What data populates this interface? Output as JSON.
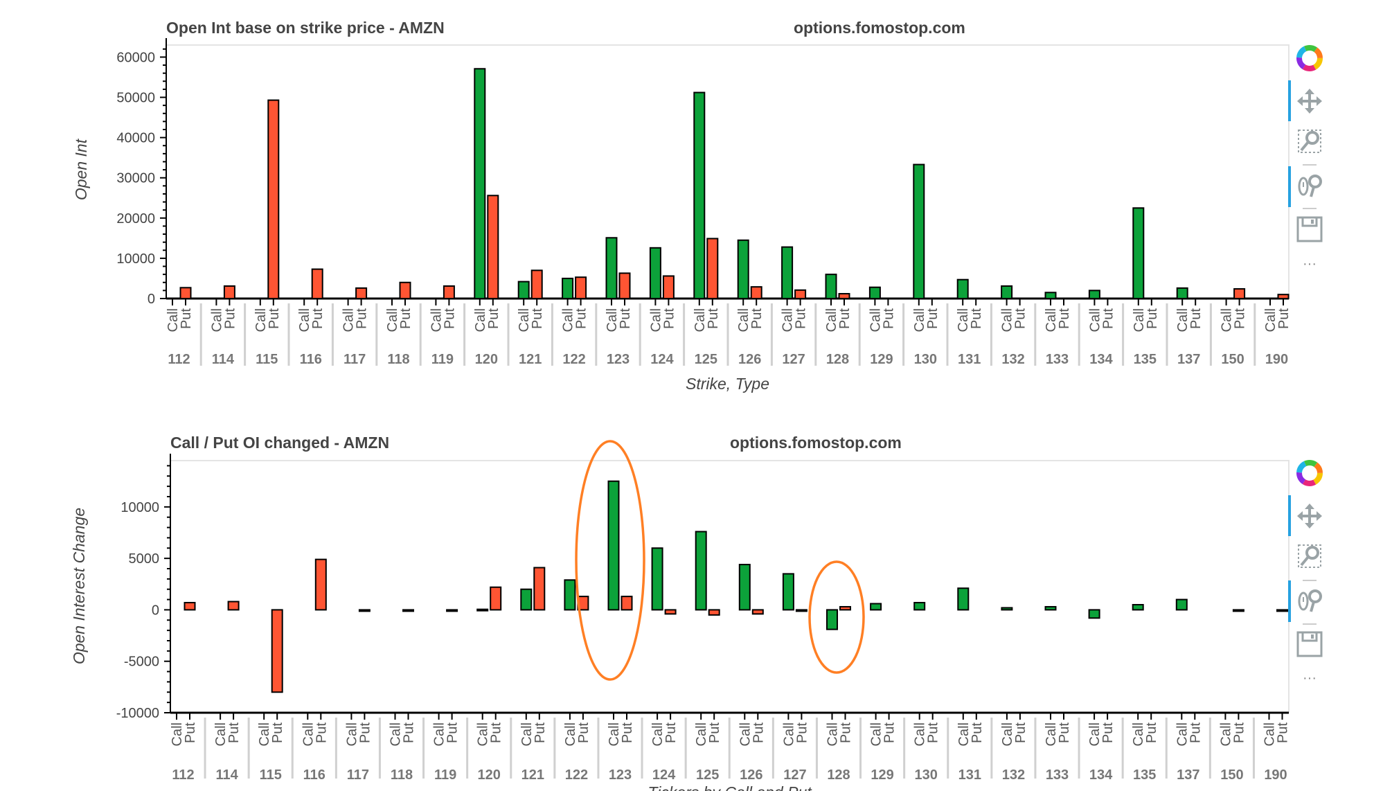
{
  "chart_data": [
    {
      "type": "bar",
      "title": "Open Int base on strike price - AMZN",
      "subtitle": "options.fomostop.com",
      "xlabel": "Strike, Type",
      "ylabel": "Open Int",
      "ylim": [
        0,
        63000
      ],
      "yticks": [
        0,
        10000,
        20000,
        30000,
        40000,
        50000,
        60000
      ],
      "ytick_labels": [
        "0",
        "10000",
        "20000",
        "30000",
        "40000",
        "50000",
        "60000"
      ],
      "grid": false,
      "categories": [
        "112",
        "114",
        "115",
        "116",
        "117",
        "118",
        "119",
        "120",
        "121",
        "122",
        "123",
        "124",
        "125",
        "126",
        "127",
        "128",
        "129",
        "130",
        "131",
        "132",
        "133",
        "134",
        "135",
        "137",
        "150",
        "190"
      ],
      "subcategories": [
        "Call",
        "Put"
      ],
      "series": [
        {
          "name": "Call",
          "color": "#0ca23a",
          "values": [
            0,
            0,
            0,
            0,
            0,
            0,
            0,
            57100,
            4200,
            5000,
            15100,
            12600,
            51200,
            14500,
            12800,
            6000,
            2800,
            33300,
            4700,
            3100,
            1500,
            2000,
            22500,
            2600,
            0,
            0
          ]
        },
        {
          "name": "Put",
          "color": "#ff5533",
          "values": [
            2700,
            3100,
            49300,
            7300,
            2600,
            4000,
            3100,
            25600,
            7000,
            5300,
            6300,
            5600,
            14900,
            2900,
            2100,
            1200,
            0,
            0,
            0,
            0,
            0,
            0,
            0,
            0,
            2400,
            1000
          ]
        }
      ]
    },
    {
      "type": "bar",
      "title": "Call / Put OI changed - AMZN",
      "subtitle": "options.fomostop.com",
      "xlabel": "Tickers by Call and Put",
      "ylabel": "Open Interest Change",
      "ylim": [
        -10000,
        14500
      ],
      "yticks": [
        -10000,
        -5000,
        0,
        5000,
        10000
      ],
      "ytick_labels": [
        "-10000",
        "-5000",
        "0",
        "5000",
        "10000"
      ],
      "grid": false,
      "categories": [
        "112",
        "114",
        "115",
        "116",
        "117",
        "118",
        "119",
        "120",
        "121",
        "122",
        "123",
        "124",
        "125",
        "126",
        "127",
        "128",
        "129",
        "130",
        "131",
        "132",
        "133",
        "134",
        "135",
        "137",
        "150",
        "190"
      ],
      "subcategories": [
        "Call",
        "Put"
      ],
      "series": [
        {
          "name": "Call",
          "color": "#0ca23a",
          "values": [
            0,
            0,
            0,
            0,
            0,
            0,
            0,
            50,
            2000,
            2900,
            12500,
            6000,
            7600,
            4400,
            3500,
            -1900,
            600,
            700,
            2100,
            200,
            300,
            -800,
            500,
            1000,
            0,
            0
          ]
        },
        {
          "name": "Put",
          "color": "#ff5533",
          "values": [
            700,
            800,
            -8000,
            4900,
            -100,
            -100,
            -100,
            2200,
            4100,
            1300,
            1300,
            -400,
            -500,
            -400,
            -100,
            300,
            0,
            0,
            0,
            0,
            0,
            0,
            0,
            0,
            -50,
            -50
          ]
        }
      ],
      "annotations": [
        {
          "type": "ellipse",
          "around": "123",
          "color": "#ff7f24"
        },
        {
          "type": "ellipse",
          "around": "128",
          "color": "#ff7f24"
        }
      ]
    }
  ],
  "toolbar": {
    "icons": [
      "bokeh-logo-icon",
      "pan-icon",
      "box-zoom-icon",
      "wheel-zoom-icon",
      "save-icon",
      "more-icon"
    ],
    "more_label": "···"
  }
}
